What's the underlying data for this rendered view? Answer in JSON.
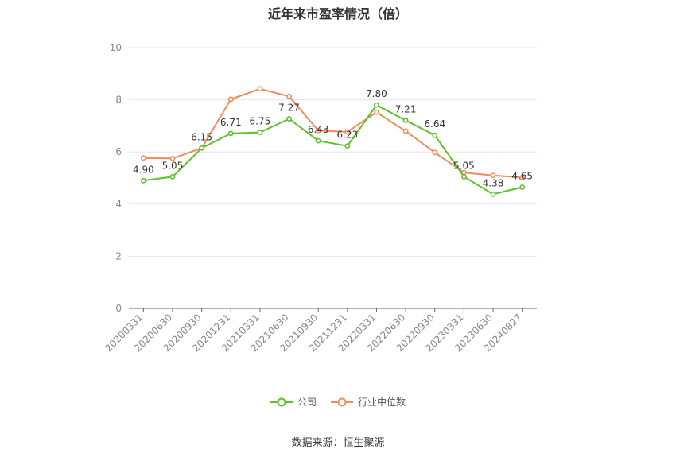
{
  "chart_data": {
    "type": "line",
    "title": "近年来市盈率情况（倍）",
    "categories": [
      "20200331",
      "20200630",
      "20200930",
      "20201231",
      "20210331",
      "20210630",
      "20210930",
      "20211231",
      "20220331",
      "20220630",
      "20220930",
      "20230331",
      "20230630",
      "20240827"
    ],
    "series": [
      {
        "name": "公司",
        "color": "#5cc22c",
        "values": [
          4.9,
          5.05,
          6.15,
          6.71,
          6.75,
          7.27,
          6.43,
          6.23,
          7.8,
          7.21,
          6.64,
          5.05,
          4.38,
          4.65
        ],
        "labels": [
          "4.90",
          "5.05",
          "6.15",
          "6.71",
          "6.75",
          "7.27",
          "6.43",
          "6.23",
          "7.80",
          "7.21",
          "6.64",
          "5.05",
          "4.38",
          "4.65"
        ]
      },
      {
        "name": "行业中位数",
        "color": "#f08c5a",
        "values": [
          5.77,
          5.75,
          6.15,
          8.02,
          8.42,
          8.13,
          6.82,
          6.77,
          7.52,
          6.8,
          5.98,
          5.21,
          5.1,
          5.02
        ]
      }
    ],
    "ylim": [
      0,
      10
    ],
    "yticks": [
      0,
      2,
      4,
      6,
      8,
      10
    ],
    "grid": true,
    "legend_position": "bottom-center"
  },
  "source_text": "数据来源：恒生聚源"
}
